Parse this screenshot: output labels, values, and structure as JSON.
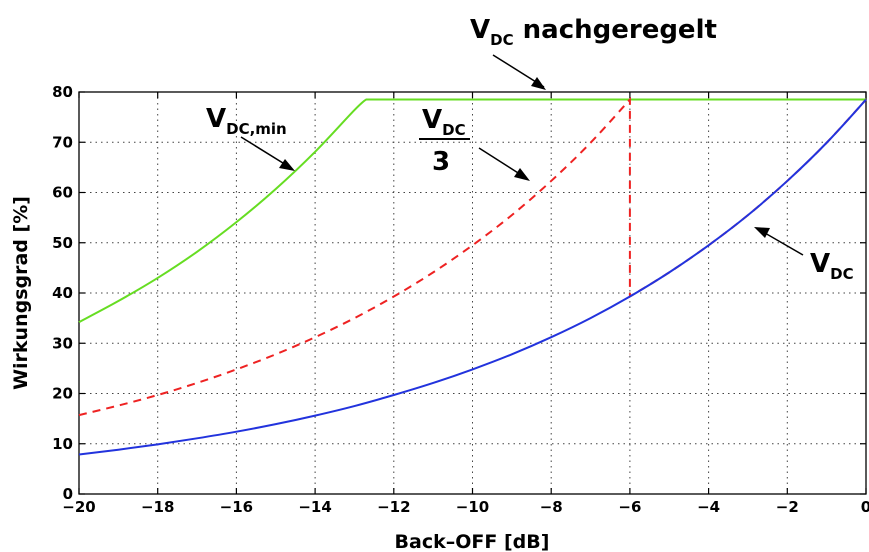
{
  "chart_data": {
    "type": "line",
    "xlabel": "Back–OFF [dB]",
    "ylabel": "Wirkungsgrad [%]",
    "xlim": [
      -20,
      0
    ],
    "ylim": [
      0,
      80
    ],
    "xticks": [
      -20,
      -18,
      -16,
      -14,
      -12,
      -10,
      -8,
      -6,
      -4,
      -2,
      0
    ],
    "xtick_labels": [
      "−20",
      "−18",
      "−16",
      "−14",
      "−12",
      "−10",
      "−8",
      "−6",
      "−4",
      "−2",
      "0"
    ],
    "yticks": [
      0,
      10,
      20,
      30,
      40,
      50,
      60,
      70,
      80
    ],
    "ytick_labels": [
      "0",
      "10",
      "20",
      "30",
      "40",
      "50",
      "60",
      "70",
      "80"
    ],
    "grid": true,
    "series": [
      {
        "color": "#66dd22",
        "style": "solid",
        "x": [
          -20,
          -19,
          -18,
          -17,
          -16,
          -15,
          -14,
          -13,
          -12.7,
          -12,
          -10,
          -8,
          -6,
          -4,
          -2,
          0
        ],
        "y": [
          34.2,
          38.4,
          43.0,
          48.2,
          54.1,
          60.7,
          68.1,
          76.4,
          78.5,
          78.5,
          78.5,
          78.5,
          78.5,
          78.5,
          78.5,
          78.5
        ]
      },
      {
        "color": "#ee2222",
        "style": "dashed",
        "x": [
          -20,
          -19,
          -18,
          -17,
          -16,
          -15,
          -14,
          -13,
          -12,
          -11,
          -10,
          -9,
          -8,
          -7,
          -6,
          -6,
          -5,
          -4,
          -3,
          -2,
          -1,
          0
        ],
        "y": [
          15.7,
          17.6,
          19.7,
          22.1,
          24.8,
          27.8,
          31.2,
          35.0,
          39.3,
          44.1,
          49.5,
          55.5,
          62.3,
          69.9,
          78.5,
          39.3,
          44.1,
          49.5,
          55.5,
          62.3,
          69.9,
          78.5
        ]
      },
      {
        "color": "#2233dd",
        "style": "solid",
        "x": [
          -20,
          -19,
          -18,
          -17,
          -16,
          -15,
          -14,
          -13,
          -12,
          -11,
          -10,
          -9,
          -8,
          -7,
          -6,
          -5,
          -4,
          -3,
          -2,
          -1,
          0
        ],
        "y": [
          7.85,
          8.81,
          9.88,
          11.08,
          12.4,
          13.9,
          15.6,
          17.5,
          19.7,
          22.1,
          24.8,
          27.8,
          31.2,
          35.0,
          39.3,
          44.1,
          49.5,
          55.5,
          62.3,
          69.9,
          78.5
        ]
      }
    ],
    "annotations": {
      "top": {
        "main": "V",
        "sub": "DC",
        "rest": " nachgeregelt"
      },
      "min": {
        "main": "V",
        "sub": "DC,min"
      },
      "third": {
        "main": "V",
        "sub": "DC",
        "den": "3"
      },
      "vdc": {
        "main": "V",
        "sub": "DC"
      }
    }
  }
}
